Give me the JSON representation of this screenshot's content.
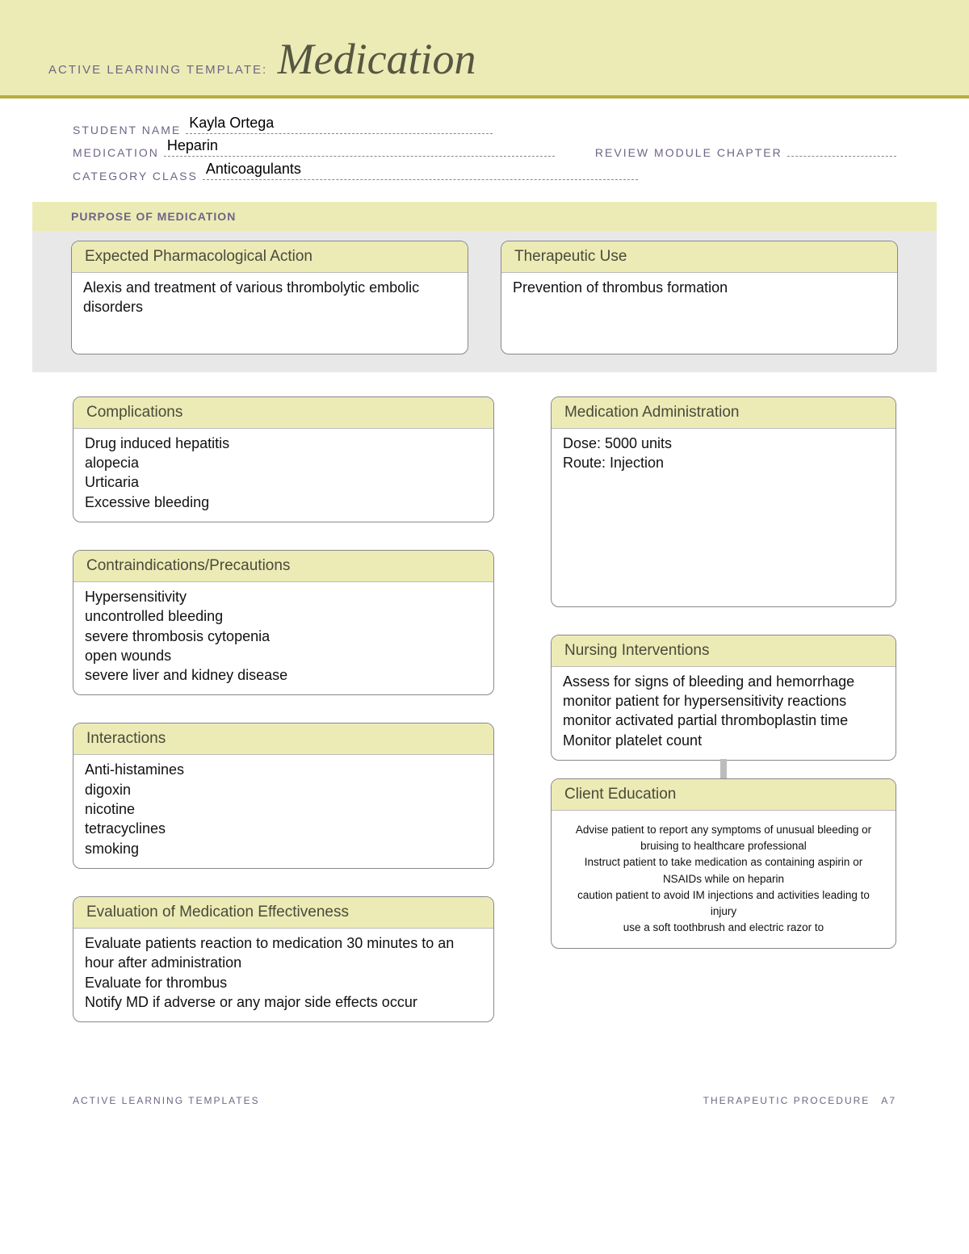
{
  "banner": {
    "prefix": "ACTIVE LEARNING TEMPLATE:",
    "title": "Medication"
  },
  "meta": {
    "student_name_label": "STUDENT NAME",
    "student_name": "Kayla Ortega",
    "medication_label": "MEDICATION",
    "medication": "Heparin",
    "review_label": "REVIEW MODULE CHAPTER",
    "review": "",
    "category_label": "CATEGORY CLASS",
    "category": "Anticoagulants"
  },
  "purpose": {
    "section_label": "PURPOSE OF MEDICATION",
    "pharm_action": {
      "title": "Expected Pharmacological Action",
      "body": "Alexis and treatment of various thrombolytic embolic disorders"
    },
    "therapeutic": {
      "title": "Therapeutic Use",
      "body": "Prevention of thrombus formation"
    }
  },
  "complications": {
    "title": "Complications",
    "body": "Drug induced hepatitis\nalopecia\nUrticaria\nExcessive bleeding"
  },
  "admin": {
    "title": "Medication Administration",
    "body": "Dose: 5000 units\nRoute: Injection"
  },
  "contra": {
    "title": "Contraindications/Precautions",
    "body": "Hypersensitivity\nuncontrolled bleeding\nsevere thrombosis cytopenia\nopen wounds\nsevere liver and kidney disease"
  },
  "nursing": {
    "title": "Nursing Interventions",
    "body": "Assess for signs of bleeding and hemorrhage\nmonitor patient for hypersensitivity reactions\nmonitor activated partial thromboplastin time\nMonitor platelet count"
  },
  "interactions": {
    "title": "Interactions",
    "body": "Anti-histamines\ndigoxin\nnicotine\ntetracyclines\nsmoking"
  },
  "client_ed": {
    "title": "Client Education",
    "body": "Advise patient to report any symptoms of unusual bleeding or bruising to healthcare professional\nInstruct patient to take medication as containing aspirin or NSAIDs while on heparin\ncaution patient to avoid IM injections and activities leading to injury\nuse a soft toothbrush and electric razor to"
  },
  "evaluation": {
    "title": "Evaluation of Medication Effectiveness",
    "body": "Evaluate patients reaction to medication 30 minutes to an hour after administration\nEvaluate for thrombus\nNotify MD if adverse or any major side effects occur"
  },
  "footer": {
    "left": "ACTIVE LEARNING TEMPLATES",
    "right": "THERAPEUTIC PROCEDURE A7"
  },
  "colors": {
    "banner_bg": "#ecebb6",
    "accent_border": "#b8ac3f",
    "label_color": "#6f6486",
    "card_border": "#888888"
  }
}
